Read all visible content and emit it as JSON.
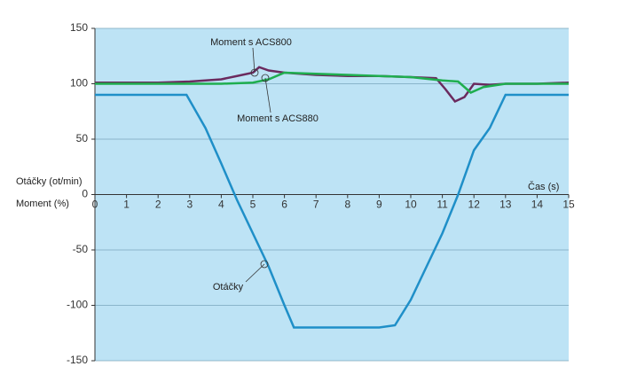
{
  "chart_data": {
    "type": "line",
    "y_label_1": "Otáčky (ot/min)",
    "y_label_2": "Moment (%)",
    "x_label": "Čas (s)",
    "xlim": [
      0,
      15
    ],
    "xticks": [
      0,
      1,
      2,
      3,
      4,
      5,
      6,
      7,
      8,
      9,
      10,
      11,
      12,
      13,
      14,
      15
    ],
    "ylim": [
      -150,
      150
    ],
    "yticks": [
      -150,
      -100,
      -50,
      0,
      50,
      100,
      150
    ],
    "grid": true,
    "series": [
      {
        "name": "Moment s ACS800",
        "color": "#6b2a5e",
        "x": [
          0,
          1,
          2,
          3,
          4,
          4.5,
          5,
          5.2,
          5.5,
          6,
          7,
          8,
          9,
          10,
          10.8,
          11.1,
          11.4,
          11.7,
          12,
          12.5,
          13,
          14,
          15
        ],
        "values": [
          101,
          101,
          101,
          102,
          104,
          107,
          110,
          115,
          112,
          110,
          108,
          107,
          107,
          106,
          105,
          95,
          84,
          88,
          100,
          99,
          100,
          100,
          101
        ]
      },
      {
        "name": "Moment s ACS880",
        "color": "#1fae4f",
        "x": [
          0,
          1,
          2,
          3,
          4,
          5,
          5.5,
          6,
          7,
          8,
          9,
          10,
          11,
          11.5,
          11.9,
          12.3,
          13,
          14,
          15
        ],
        "values": [
          100,
          100,
          100,
          100,
          100,
          101,
          104,
          110,
          109,
          108,
          107,
          106,
          103,
          102,
          92,
          97,
          100,
          100,
          100
        ]
      },
      {
        "name": "Otáčky",
        "color": "#1f8fc8",
        "x": [
          0,
          2.9,
          3.5,
          4.0,
          4.5,
          5.0,
          5.5,
          6.0,
          6.3,
          7,
          8,
          9,
          9.5,
          10,
          10.5,
          11,
          11.5,
          12,
          12.5,
          13,
          14,
          15
        ],
        "values": [
          90,
          90,
          60,
          28,
          -5,
          -35,
          -65,
          -100,
          -120,
          -120,
          -120,
          -120,
          -118,
          -95,
          -65,
          -35,
          0,
          40,
          60,
          90,
          90,
          90
        ]
      }
    ]
  }
}
